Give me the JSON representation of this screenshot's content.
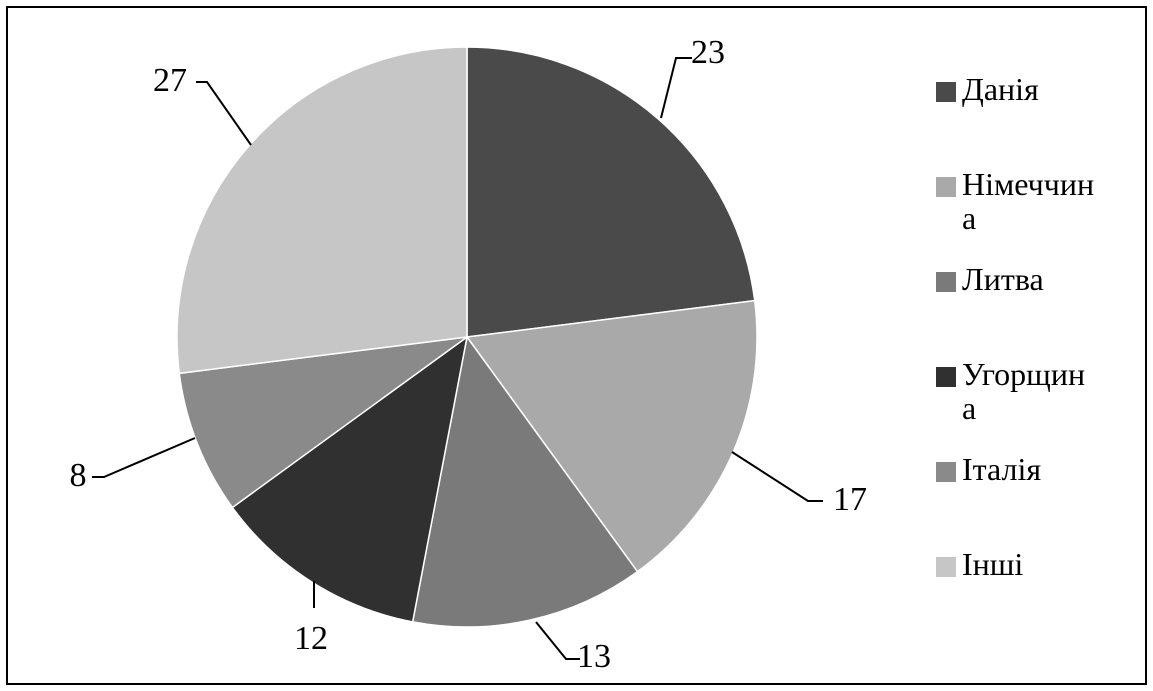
{
  "chart_data": {
    "type": "pie",
    "title": "",
    "categories": [
      "Данія",
      "Німеччина",
      "Литва",
      "Угорщина",
      "Італія",
      "Інші"
    ],
    "legend_lines": [
      [
        "Данія"
      ],
      [
        "Німеччин",
        "а"
      ],
      [
        "Литва"
      ],
      [
        "Угорщин",
        "а"
      ],
      [
        "Італія"
      ],
      [
        "Інші"
      ]
    ],
    "values": [
      23,
      17,
      13,
      12,
      8,
      27
    ],
    "colors": [
      "#4a4a4a",
      "#a9a9a9",
      "#7a7a7a",
      "#303030",
      "#8a8a8a",
      "#c6c6c6"
    ],
    "legend_position": "right",
    "start": "top",
    "direction": "clockwise"
  }
}
